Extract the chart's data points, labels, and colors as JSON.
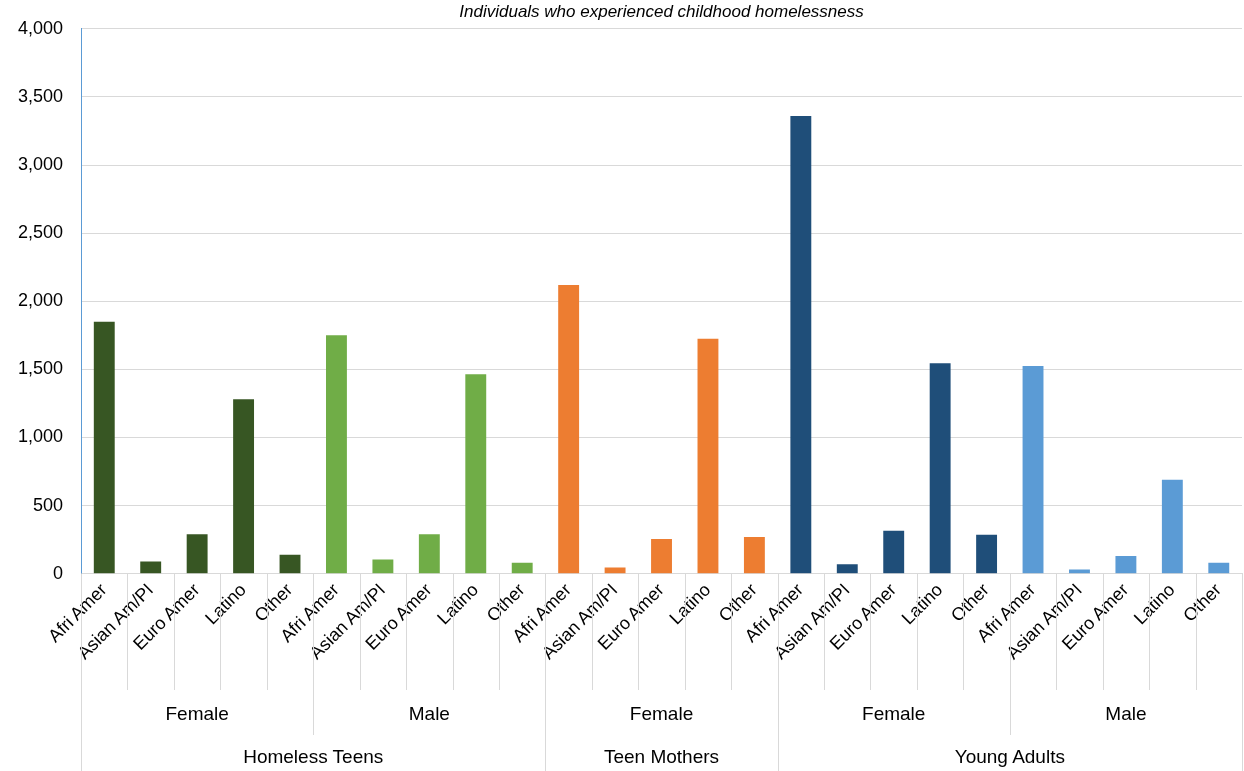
{
  "chart_data": {
    "type": "bar",
    "title": "Individuals who experienced childhood homelessness",
    "categories": [
      "Afri Amer",
      "Asian Am/PI",
      "Euro Amer",
      "Latino",
      "Other",
      "Afri Amer",
      "Asian Am/PI",
      "Euro Amer",
      "Latino",
      "Other",
      "Afri Amer",
      "Asian Am/PI",
      "Euro Amer",
      "Latino",
      "Other",
      "Afri Amer",
      "Asian Am/PI",
      "Euro Amer",
      "Latino",
      "Other",
      "Afri Amer",
      "Asian Am/PI",
      "Euro Amer",
      "Latino",
      "Other"
    ],
    "values": [
      1850,
      90,
      290,
      1280,
      140,
      1750,
      105,
      290,
      1465,
      80,
      2120,
      45,
      255,
      1725,
      270,
      3360,
      70,
      315,
      1545,
      285,
      1525,
      30,
      130,
      690,
      80
    ],
    "colors": [
      "#375623",
      "#375623",
      "#375623",
      "#375623",
      "#375623",
      "#70ad47",
      "#70ad47",
      "#70ad47",
      "#70ad47",
      "#70ad47",
      "#ed7d31",
      "#ed7d31",
      "#ed7d31",
      "#ed7d31",
      "#ed7d31",
      "#1f4e79",
      "#1f4e79",
      "#1f4e79",
      "#1f4e79",
      "#1f4e79",
      "#5b9bd5",
      "#5b9bd5",
      "#5b9bd5",
      "#5b9bd5",
      "#5b9bd5"
    ],
    "annotations": [
      "Female",
      "Male",
      "Female",
      "Female",
      "Male",
      "Homeless Teens",
      "Teen Mothers",
      "Young Adults"
    ],
    "ylim": [
      0,
      4000
    ],
    "yticks": [
      {
        "value": 0,
        "label": "0"
      },
      {
        "value": 500,
        "label": "500"
      },
      {
        "value": 1000,
        "label": "1,000"
      },
      {
        "value": 1500,
        "label": "1,500"
      },
      {
        "value": 2000,
        "label": "2,000"
      },
      {
        "value": 2500,
        "label": "2,500"
      },
      {
        "value": 3000,
        "label": "3,000"
      },
      {
        "value": 3500,
        "label": "3,500"
      },
      {
        "value": 4000,
        "label": "4,000"
      }
    ],
    "grid": "y",
    "legend": false
  }
}
